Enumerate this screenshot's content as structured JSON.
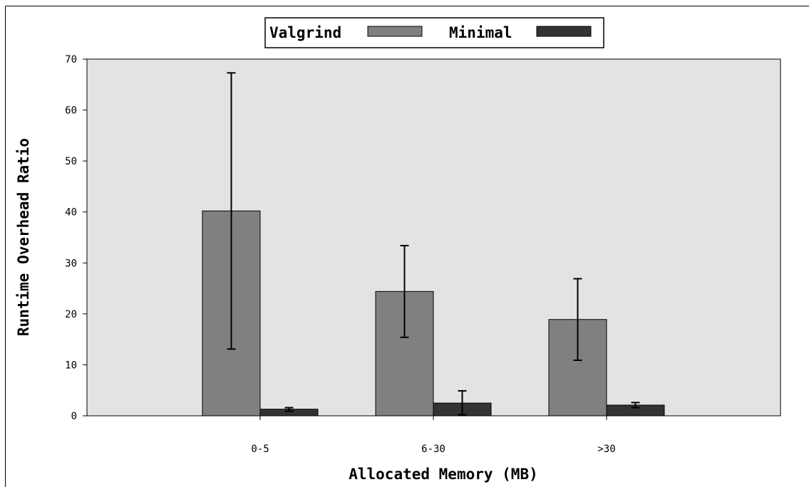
{
  "chart_data": {
    "type": "bar",
    "title": "",
    "xlabel": "Allocated Memory (MB)",
    "ylabel": "Runtime Overhead Ratio",
    "categories": [
      "0-5",
      "6-30",
      ">30"
    ],
    "ylim": [
      0,
      70
    ],
    "yticks": [
      0,
      10,
      20,
      30,
      40,
      50,
      60,
      70
    ],
    "grid": false,
    "legend_position": "top-center",
    "series": [
      {
        "name": "Valgrind",
        "color": "#808080",
        "values": [
          40.2,
          24.4,
          18.9
        ],
        "error_low": [
          13.1,
          15.4,
          10.9
        ],
        "error_high": [
          67.3,
          33.4,
          26.9
        ]
      },
      {
        "name": "Minimal",
        "color": "#333333",
        "values": [
          1.3,
          2.5,
          2.1
        ],
        "error_low": [
          0.9,
          0.2,
          1.6
        ],
        "error_high": [
          1.6,
          4.9,
          2.6
        ]
      }
    ],
    "plot_background": "#e3e3e3"
  }
}
